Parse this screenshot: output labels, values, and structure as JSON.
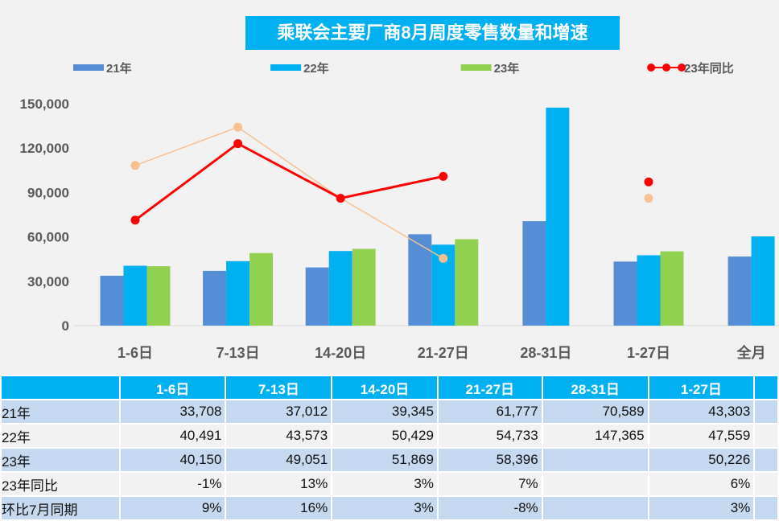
{
  "chart_data": {
    "type": "bar",
    "title": "乘联会主要厂商8月周度零售数量和增速",
    "categories": [
      "1-6日",
      "7-13日",
      "14-20日",
      "21-27日",
      "28-31日",
      "1-27日",
      "全月"
    ],
    "ylim": [
      0,
      150000
    ],
    "yticks": [
      "0",
      "30,000",
      "60,000",
      "90,000",
      "120,000",
      "150,000"
    ],
    "ytick_values": [
      0,
      30000,
      60000,
      90000,
      120000,
      150000
    ],
    "series": [
      {
        "name": "21年",
        "kind": "bar",
        "color": "#558ed5",
        "values": [
          33708,
          37012,
          39345,
          61777,
          70589,
          43303,
          46700
        ]
      },
      {
        "name": "22年",
        "kind": "bar",
        "color": "#00b0f0",
        "values": [
          40491,
          43573,
          50429,
          54733,
          147365,
          47559,
          60300
        ]
      },
      {
        "name": "23年",
        "kind": "bar",
        "color": "#92d050",
        "values": [
          40150,
          49051,
          51869,
          58396,
          null,
          50226,
          null
        ]
      },
      {
        "name": "23年同比",
        "kind": "line",
        "axis": "secondary",
        "color": "#ff0000",
        "values": [
          -1,
          13,
          3,
          7,
          null,
          6,
          null
        ],
        "unit": "%"
      },
      {
        "name": "环比7月同期",
        "kind": "line",
        "axis": "secondary",
        "color": "#fac090",
        "values": [
          9,
          16,
          3,
          -8,
          null,
          3,
          null
        ],
        "unit": "%"
      }
    ],
    "legend": "top",
    "grid": false
  },
  "table": {
    "header": [
      "",
      "1-6日",
      "7-13日",
      "14-20日",
      "21-27日",
      "28-31日",
      "1-27日",
      ""
    ],
    "rows": [
      [
        "21年",
        "33,708",
        "37,012",
        "39,345",
        "61,777",
        "70,589",
        "43,303",
        ""
      ],
      [
        "22年",
        "40,491",
        "43,573",
        "50,429",
        "54,733",
        "147,365",
        "47,559",
        ""
      ],
      [
        "23年",
        "40,150",
        "49,051",
        "51,869",
        "58,396",
        "",
        "50,226",
        ""
      ],
      [
        "23年同比",
        "-1%",
        "13%",
        "3%",
        "7%",
        "",
        "6%",
        ""
      ],
      [
        "环比7月同期",
        "9%",
        "16%",
        "3%",
        "-8%",
        "",
        "3%",
        ""
      ]
    ]
  }
}
